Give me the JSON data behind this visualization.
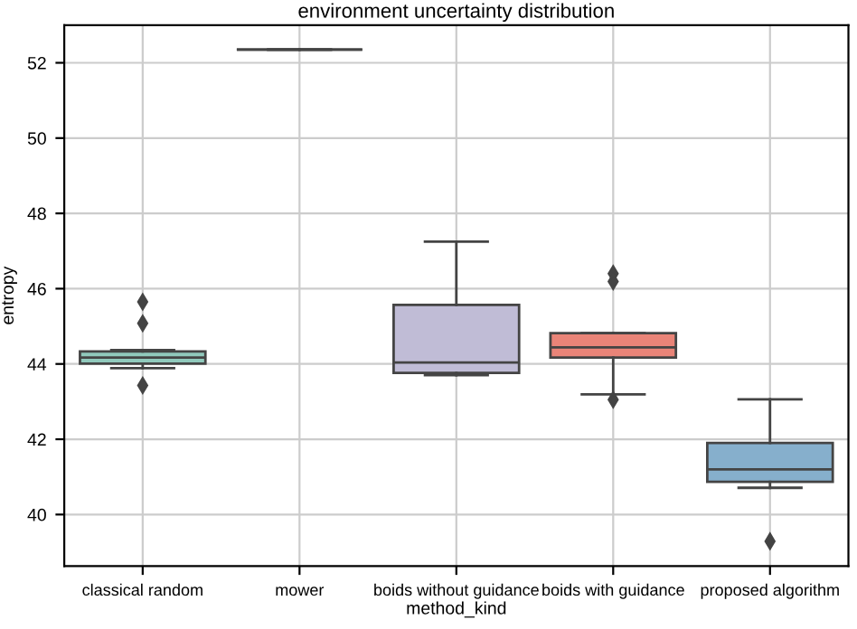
{
  "chart_data": {
    "type": "box",
    "title": "environment uncertainty distribution",
    "xlabel": "method_kind",
    "ylabel": "entropy",
    "categories": [
      "classical random",
      "mower",
      "boids without guidance",
      "boids with guidance",
      "proposed algorithm"
    ],
    "boxes": [
      {
        "low": 43.89,
        "q1": 44.01,
        "median": 44.17,
        "q3": 44.33,
        "high": 44.37,
        "outliers": [
          45.65,
          45.08,
          43.43
        ]
      },
      {
        "low": 52.35,
        "q1": 52.35,
        "median": 52.35,
        "q3": 52.35,
        "high": 52.35
      },
      {
        "low": 43.7,
        "q1": 43.76,
        "median": 44.04,
        "q3": 45.57,
        "high": 47.25
      },
      {
        "low": 43.19,
        "q1": 44.17,
        "median": 44.44,
        "q3": 44.82,
        "high": 44.82,
        "outliers": [
          46.4,
          46.19,
          43.05
        ]
      },
      {
        "low": 40.71,
        "q1": 40.87,
        "median": 41.2,
        "q3": 41.9,
        "high": 43.06,
        "outliers": [
          39.29
        ]
      }
    ],
    "colors": [
      "#90c9bc",
      "#444444",
      "#c0bcd6",
      "#e98478",
      "#86afcc"
    ],
    "ylim": [
      38.63,
      53.0
    ],
    "yticks": [
      40,
      42,
      44,
      46,
      48,
      50,
      52
    ],
    "grid": true
  }
}
